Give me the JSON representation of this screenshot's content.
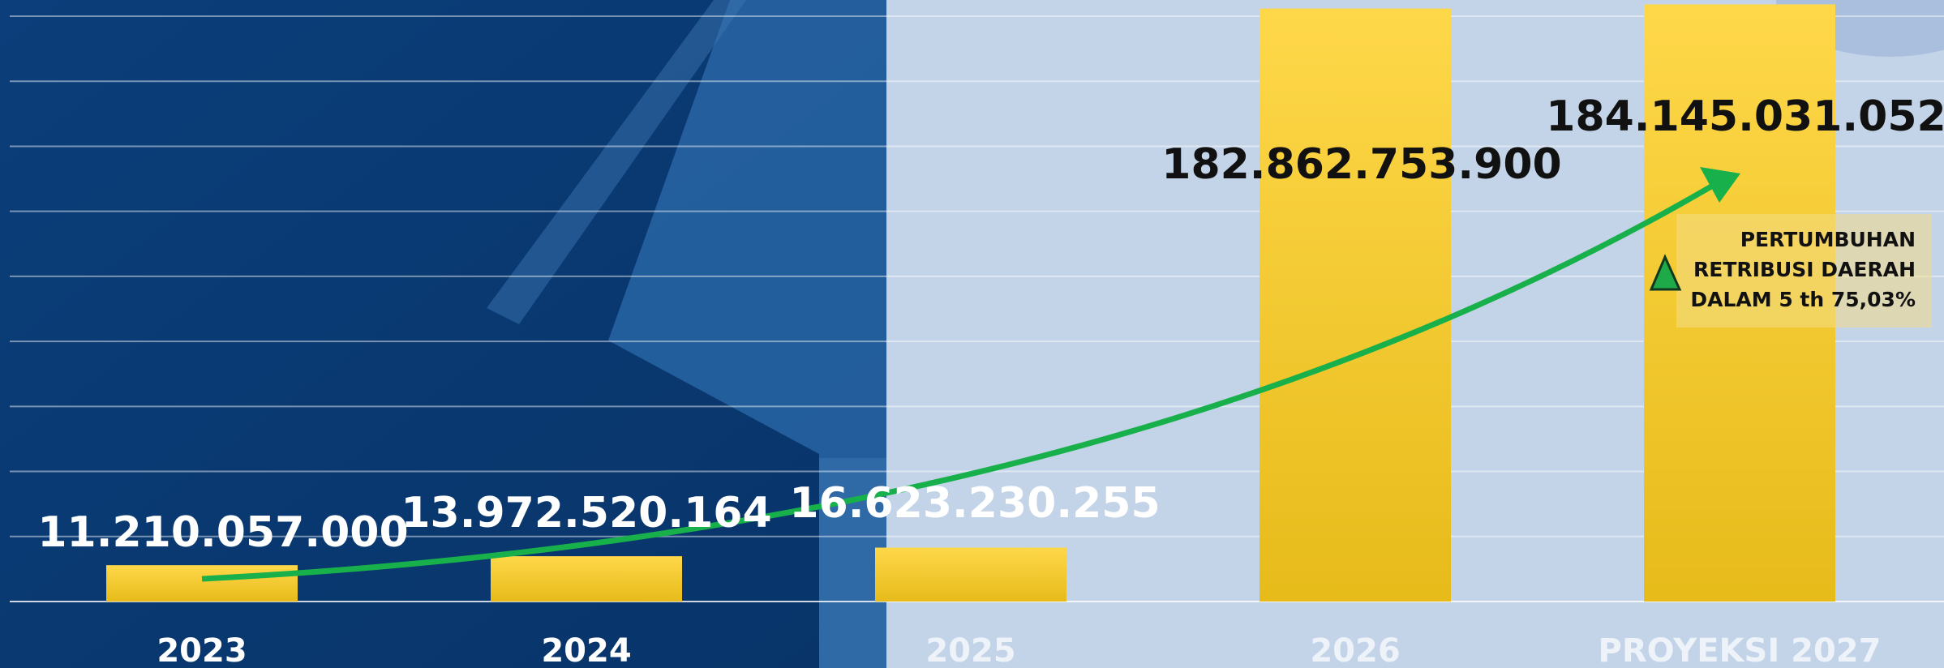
{
  "chart_data": {
    "type": "bar",
    "categories": [
      "2023",
      "2024",
      "2025",
      "2026",
      "PROYEKSI 2027"
    ],
    "values": [
      11210057000,
      13972520164,
      16623230255,
      182862753900,
      184145031052
    ],
    "value_labels": [
      "11.210.057.000",
      "13.972.520.164",
      "16.623.230.255",
      "182.862.753.900",
      "184.145.031.052"
    ],
    "color": "#f8cf2a",
    "ylim": [
      0,
      185000000000
    ],
    "grid": true,
    "annotation": [
      "PERTUMBUHAN",
      "RETRIBUSI DAERAH",
      "DALAM 5 th 75,03%"
    ]
  }
}
